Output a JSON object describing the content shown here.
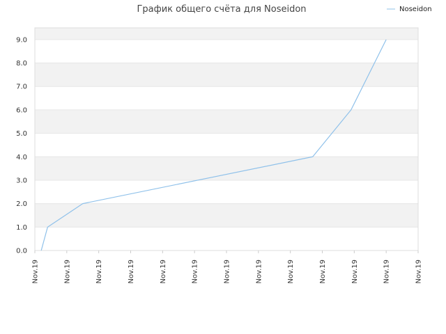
{
  "chart_data": {
    "type": "line",
    "title": "График общего счёта для Noseidon",
    "xlabel": "",
    "ylabel": "",
    "ylim": [
      0,
      9.5
    ],
    "y_ticks": [
      "0.0",
      "1.0",
      "2.0",
      "3.0",
      "4.0",
      "5.0",
      "6.0",
      "7.0",
      "8.0",
      "9.0"
    ],
    "x_ticks": [
      "Nov.19",
      "Nov.19",
      "Nov.19",
      "Nov.19",
      "Nov.19",
      "Nov.19",
      "Nov.19",
      "Nov.19",
      "Nov.19",
      "Nov.19",
      "Nov.19",
      "Nov.19",
      "Nov.19"
    ],
    "legend": {
      "position": "top-right"
    },
    "series": [
      {
        "name": "Noseidon",
        "color": "#8fc1ea",
        "x_index": [
          0.2,
          0.4,
          1.5,
          8.7,
          9.9,
          11.0
        ],
        "values": [
          0,
          1,
          2,
          4,
          6,
          9
        ]
      }
    ],
    "band_colors": [
      "#ffffff",
      "#f2f2f2"
    ],
    "grid": true
  }
}
